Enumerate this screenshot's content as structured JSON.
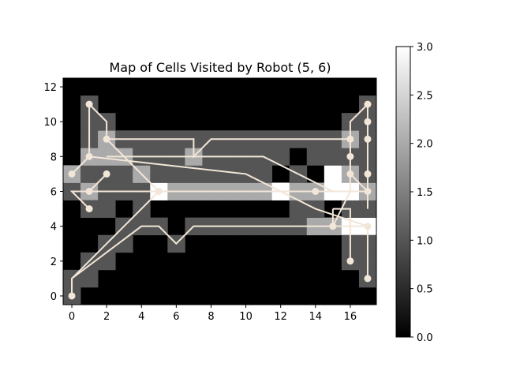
{
  "chart_data": {
    "type": "heatmap",
    "title": "Map of Cells Visited by Robot (5, 6)",
    "xlabel": "",
    "ylabel": "",
    "grid": false,
    "xlim": [
      -0.5,
      17.5
    ],
    "ylim": [
      -0.5,
      12.5
    ],
    "x_ticks": [
      0,
      2,
      4,
      6,
      8,
      10,
      12,
      14,
      16
    ],
    "y_ticks": [
      0,
      2,
      4,
      6,
      8,
      10,
      12
    ],
    "colorbar": {
      "range": [
        0,
        3
      ],
      "ticks": [
        "0.0",
        "0.5",
        "1.0",
        "1.5",
        "2.0",
        "2.5",
        "3.0"
      ],
      "colormap": "gray",
      "placement": "right"
    },
    "path_color": "#f2e6d8",
    "cells": [
      [
        0,
        0,
        1
      ],
      [
        0,
        1,
        1
      ],
      [
        1,
        1,
        1
      ],
      [
        1,
        2,
        1
      ],
      [
        2,
        2,
        1
      ],
      [
        2,
        3,
        1
      ],
      [
        3,
        3,
        1
      ],
      [
        3,
        4,
        1
      ],
      [
        4,
        4,
        1
      ],
      [
        5,
        4,
        1
      ],
      [
        6,
        3,
        1
      ],
      [
        7,
        4,
        1
      ],
      [
        8,
        4,
        1
      ],
      [
        9,
        4,
        1
      ],
      [
        10,
        4,
        1
      ],
      [
        11,
        4,
        1
      ],
      [
        12,
        4,
        1
      ],
      [
        13,
        4,
        1
      ],
      [
        14,
        4,
        2
      ],
      [
        15,
        4,
        2
      ],
      [
        16,
        4,
        3
      ],
      [
        17,
        4,
        3
      ],
      [
        4,
        5,
        1
      ],
      [
        13,
        5,
        1
      ],
      [
        14,
        5,
        1
      ],
      [
        16,
        5,
        1
      ],
      [
        17,
        5,
        1
      ],
      [
        0,
        6,
        1
      ],
      [
        1,
        6,
        2
      ],
      [
        2,
        6,
        1
      ],
      [
        3,
        6,
        1
      ],
      [
        4,
        6,
        1
      ],
      [
        5,
        6,
        3
      ],
      [
        6,
        6,
        2
      ],
      [
        7,
        6,
        2
      ],
      [
        8,
        6,
        2
      ],
      [
        9,
        6,
        2
      ],
      [
        10,
        6,
        2
      ],
      [
        11,
        6,
        2
      ],
      [
        12,
        6,
        3
      ],
      [
        13,
        6,
        2
      ],
      [
        14,
        6,
        2
      ],
      [
        15,
        6,
        3
      ],
      [
        16,
        6,
        3
      ],
      [
        17,
        6,
        2
      ],
      [
        0,
        7,
        2
      ],
      [
        1,
        7,
        1
      ],
      [
        2,
        7,
        1
      ],
      [
        3,
        7,
        1
      ],
      [
        4,
        7,
        2
      ],
      [
        5,
        7,
        1
      ],
      [
        6,
        7,
        1
      ],
      [
        7,
        7,
        1
      ],
      [
        8,
        7,
        1
      ],
      [
        9,
        7,
        1
      ],
      [
        10,
        7,
        1
      ],
      [
        11,
        7,
        1
      ],
      [
        13,
        7,
        1
      ],
      [
        15,
        7,
        3
      ],
      [
        16,
        7,
        2
      ],
      [
        17,
        7,
        1
      ],
      [
        1,
        8,
        2
      ],
      [
        2,
        8,
        2
      ],
      [
        3,
        8,
        2
      ],
      [
        4,
        8,
        1
      ],
      [
        5,
        8,
        1
      ],
      [
        6,
        8,
        1
      ],
      [
        7,
        8,
        2
      ],
      [
        8,
        8,
        1
      ],
      [
        9,
        8,
        1
      ],
      [
        10,
        8,
        1
      ],
      [
        11,
        8,
        1
      ],
      [
        12,
        8,
        1
      ],
      [
        14,
        8,
        1
      ],
      [
        15,
        8,
        1
      ],
      [
        16,
        8,
        1
      ],
      [
        17,
        8,
        1
      ],
      [
        1,
        9,
        1
      ],
      [
        2,
        9,
        2
      ],
      [
        3,
        9,
        1
      ],
      [
        4,
        9,
        1
      ],
      [
        5,
        9,
        1
      ],
      [
        6,
        9,
        1
      ],
      [
        7,
        9,
        1
      ],
      [
        8,
        9,
        1
      ],
      [
        9,
        9,
        1
      ],
      [
        10,
        9,
        1
      ],
      [
        11,
        9,
        1
      ],
      [
        12,
        9,
        1
      ],
      [
        13,
        9,
        1
      ],
      [
        14,
        9,
        1
      ],
      [
        15,
        9,
        1
      ],
      [
        16,
        9,
        2
      ],
      [
        17,
        9,
        1
      ],
      [
        1,
        10,
        1
      ],
      [
        2,
        10,
        1
      ],
      [
        16,
        10,
        1
      ],
      [
        17,
        10,
        1
      ],
      [
        1,
        11,
        1
      ],
      [
        17,
        11,
        1
      ],
      [
        1,
        5,
        1
      ],
      [
        2,
        5,
        1
      ],
      [
        16,
        3,
        1
      ],
      [
        17,
        3,
        1
      ],
      [
        16,
        2,
        1
      ],
      [
        17,
        2,
        1
      ],
      [
        17,
        1,
        1
      ]
    ],
    "paths": [
      [
        [
          1,
          5
        ],
        [
          0,
          6
        ],
        [
          2,
          6
        ],
        [
          3,
          6
        ],
        [
          5,
          6
        ],
        [
          11,
          6
        ],
        [
          12,
          6
        ],
        [
          14,
          6
        ],
        [
          16,
          6
        ],
        [
          17,
          6
        ]
      ],
      [
        [
          0,
          0
        ],
        [
          0,
          1
        ],
        [
          4,
          5
        ],
        [
          5,
          6
        ]
      ],
      [
        [
          1,
          6
        ],
        [
          2,
          7
        ]
      ],
      [
        [
          0,
          7
        ],
        [
          1,
          8
        ],
        [
          10,
          7
        ],
        [
          14,
          5
        ],
        [
          17,
          4
        ],
        [
          17,
          1
        ]
      ],
      [
        [
          1,
          11
        ],
        [
          1,
          8
        ],
        [
          0,
          7
        ]
      ],
      [
        [
          1,
          11
        ],
        [
          2,
          10
        ],
        [
          2,
          9
        ],
        [
          3,
          8
        ],
        [
          5,
          6
        ]
      ],
      [
        [
          2,
          9
        ],
        [
          7,
          9
        ],
        [
          7,
          8
        ],
        [
          8,
          9
        ],
        [
          16,
          9
        ],
        [
          16,
          8
        ],
        [
          16,
          7
        ],
        [
          17,
          6
        ],
        [
          17,
          5
        ]
      ],
      [
        [
          0,
          0
        ],
        [
          0,
          1
        ],
        [
          4,
          4
        ],
        [
          5,
          4
        ],
        [
          6,
          3
        ],
        [
          7,
          4
        ],
        [
          15,
          4
        ],
        [
          17,
          4
        ]
      ],
      [
        [
          17,
          11
        ],
        [
          17,
          10
        ],
        [
          17,
          9
        ],
        [
          17,
          7
        ],
        [
          17,
          6
        ]
      ],
      [
        [
          17,
          11
        ],
        [
          16,
          10
        ],
        [
          16,
          8
        ],
        [
          16,
          6
        ],
        [
          15,
          4
        ],
        [
          15,
          5
        ]
      ],
      [
        [
          15,
          5
        ],
        [
          16,
          5
        ],
        [
          16,
          2
        ]
      ],
      [
        [
          2,
          8
        ],
        [
          4,
          8
        ],
        [
          11,
          8
        ],
        [
          15,
          6
        ]
      ]
    ],
    "markers": [
      [
        0,
        0
      ],
      [
        1,
        5
      ],
      [
        1,
        6
      ],
      [
        2,
        7
      ],
      [
        0,
        7
      ],
      [
        1,
        8
      ],
      [
        1,
        11
      ],
      [
        2,
        9
      ],
      [
        5,
        6
      ],
      [
        14,
        6
      ],
      [
        15,
        4
      ],
      [
        16,
        2
      ],
      [
        16,
        7
      ],
      [
        16,
        8
      ],
      [
        16,
        9
      ],
      [
        17,
        1
      ],
      [
        17,
        4
      ],
      [
        17,
        6
      ],
      [
        17,
        7
      ],
      [
        17,
        9
      ],
      [
        17,
        10
      ],
      [
        17,
        11
      ]
    ]
  }
}
